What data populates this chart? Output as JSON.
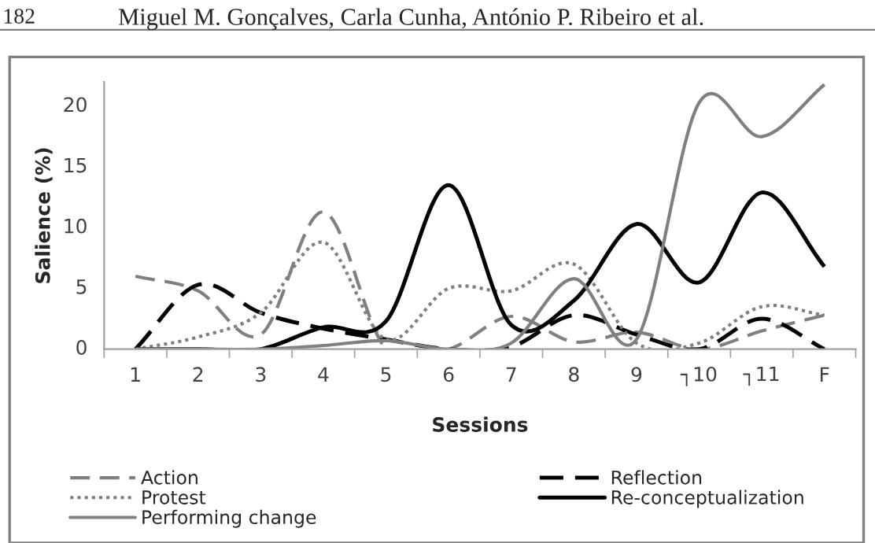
{
  "chart_data": {
    "type": "line",
    "annotations": [
      "182",
      "Miguel M. Gonçalves, Carla Cunha, António P. Ribeiro et al."
    ],
    "xlabel": "Sessions",
    "ylabel": "Salience (%)",
    "categories": [
      "1",
      "2",
      "3",
      "4",
      "5",
      "6",
      "7",
      "8",
      "9",
      "┐10",
      "┐11",
      "F"
    ],
    "ylim": [
      0,
      22
    ],
    "yticks": [
      0,
      5,
      10,
      15,
      20
    ],
    "grid": false,
    "legend": "bottom",
    "marker": "none",
    "series": [
      {
        "name": "Action",
        "color": "#808080",
        "line_style": "dashed",
        "values": [
          6,
          4.8,
          1.2,
          11.3,
          0,
          0,
          2.7,
          0.6,
          1.4,
          0,
          1.5,
          2.8
        ]
      },
      {
        "name": "Reflection",
        "color": "#000000",
        "line_style": "dashed",
        "values": [
          0,
          5.3,
          3,
          1.7,
          0.8,
          0,
          0.2,
          2.8,
          1.2,
          0,
          2.5,
          0
        ]
      },
      {
        "name": "Protest",
        "color": "#808080",
        "line_style": "dotted",
        "values": [
          0,
          1,
          3,
          8.8,
          0.8,
          5,
          4.8,
          7,
          0.5,
          0.5,
          3.5,
          2.8
        ]
      },
      {
        "name": "Re-conceptualization",
        "color": "#000000",
        "line_style": "solid",
        "values": [
          0,
          0,
          0,
          1.8,
          2.3,
          13.5,
          2,
          4,
          10.3,
          5.5,
          12.9,
          6.8
        ]
      },
      {
        "name": "Performing change",
        "color": "#808080",
        "line_style": "solid",
        "values": [
          0,
          0,
          0,
          0.3,
          0.7,
          0,
          0.5,
          5.8,
          0.8,
          20.3,
          17.5,
          21.8
        ]
      }
    ]
  }
}
